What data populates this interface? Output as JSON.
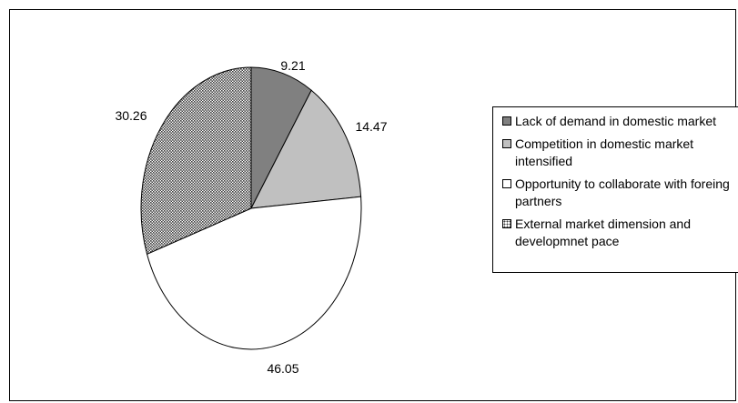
{
  "chart_data": {
    "type": "pie",
    "title": "",
    "categories": [
      "Lack of demand in domestic market",
      "Competition in domestic market intensified",
      "Opportunity to collaborate with foreing partners",
      "External market dimension and developmnet pace"
    ],
    "values": [
      9.21,
      14.47,
      46.05,
      30.26
    ],
    "labels": [
      "9.21",
      "14.47",
      "46.05",
      "30.26"
    ],
    "colors": [
      "#808080",
      "#c0c0c0",
      "#ffffff",
      "#969696"
    ],
    "fills": [
      "solid",
      "solid",
      "solid",
      "dotted"
    ],
    "start_angle": "12 o'clock",
    "direction": "clockwise",
    "legend_position": "right"
  }
}
